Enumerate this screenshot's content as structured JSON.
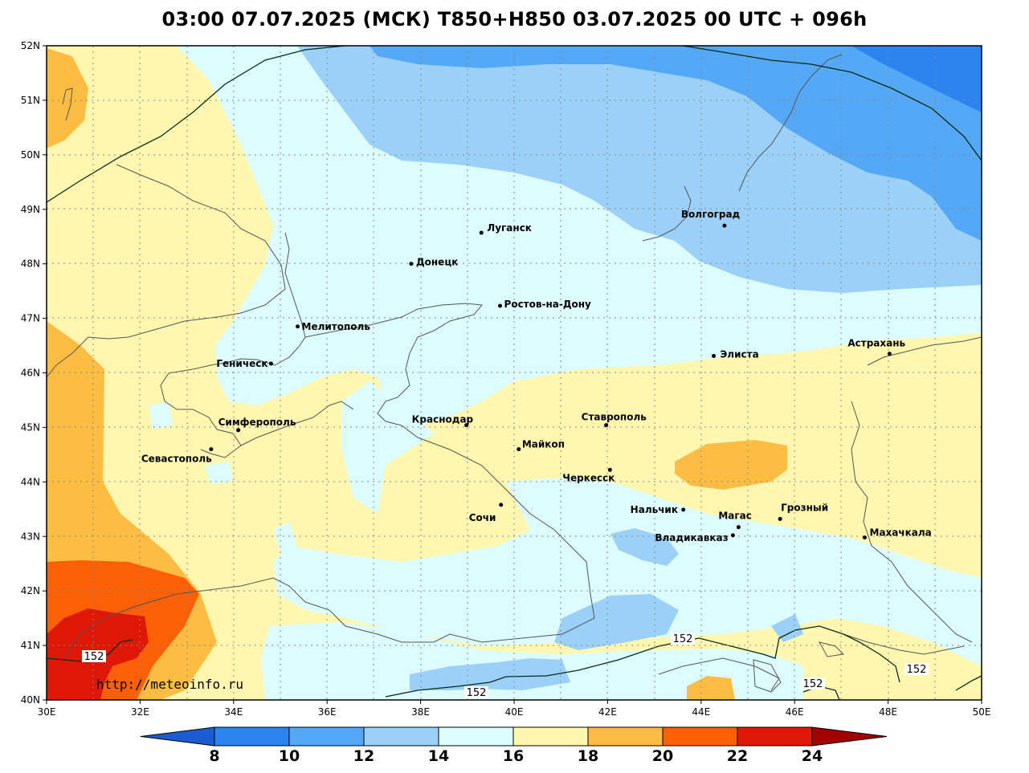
{
  "title": "03:00 07.07.2025 (МСК) T850+H850 03.07.2025 00 UTC + 096h",
  "watermark": "http://meteoinfo.ru",
  "axes": {
    "lon_labels": [
      "30E",
      "32E",
      "34E",
      "36E",
      "38E",
      "40E",
      "42E",
      "44E",
      "46E",
      "48E",
      "50E"
    ],
    "lat_labels": [
      "52N",
      "51N",
      "50N",
      "49N",
      "48N",
      "47N",
      "46N",
      "45N",
      "44N",
      "43N",
      "42N",
      "41N",
      "40N"
    ]
  },
  "cities": [
    {
      "name": "Волгоград",
      "lon": 44.5,
      "lat": 48.7
    },
    {
      "name": "Луганск",
      "lon": 39.3,
      "lat": 48.57
    },
    {
      "name": "Донецк",
      "lon": 37.8,
      "lat": 48.0
    },
    {
      "name": "Ростов-на-Дону",
      "lon": 39.7,
      "lat": 47.23
    },
    {
      "name": "Мелитополь",
      "lon": 35.37,
      "lat": 46.85
    },
    {
      "name": "Геническ",
      "lon": 34.8,
      "lat": 46.17
    },
    {
      "name": "Элиста",
      "lon": 44.27,
      "lat": 46.31
    },
    {
      "name": "Астрахань",
      "lon": 48.03,
      "lat": 46.35
    },
    {
      "name": "Симферополь",
      "lon": 34.1,
      "lat": 44.95
    },
    {
      "name": "Севастополь",
      "lon": 33.52,
      "lat": 44.6
    },
    {
      "name": "Краснодар",
      "lon": 38.98,
      "lat": 45.04
    },
    {
      "name": "Ставрополь",
      "lon": 41.97,
      "lat": 45.04
    },
    {
      "name": "Майкоп",
      "lon": 40.1,
      "lat": 44.6
    },
    {
      "name": "Черкесск",
      "lon": 42.05,
      "lat": 44.22
    },
    {
      "name": "Сочи",
      "lon": 39.72,
      "lat": 43.58
    },
    {
      "name": "Нальчик",
      "lon": 43.62,
      "lat": 43.49
    },
    {
      "name": "Грозный",
      "lon": 45.69,
      "lat": 43.32
    },
    {
      "name": "Магас",
      "lon": 44.8,
      "lat": 43.17
    },
    {
      "name": "Владикавказ",
      "lon": 44.68,
      "lat": 43.02
    },
    {
      "name": "Махачкала",
      "lon": 47.5,
      "lat": 42.98
    }
  ],
  "contour_labels": [
    "152",
    "152",
    "152",
    "152",
    "152"
  ],
  "colorbar": {
    "levels": [
      "8",
      "10",
      "12",
      "14",
      "16",
      "18",
      "20",
      "22",
      "24"
    ],
    "colors": [
      "#1c5cd2",
      "#2e84ef",
      "#55a8f5",
      "#9bd0f8",
      "#dcfcfd",
      "#fff6b0",
      "#fdbd43",
      "#fb6006",
      "#df1806",
      "#a20000"
    ]
  }
}
